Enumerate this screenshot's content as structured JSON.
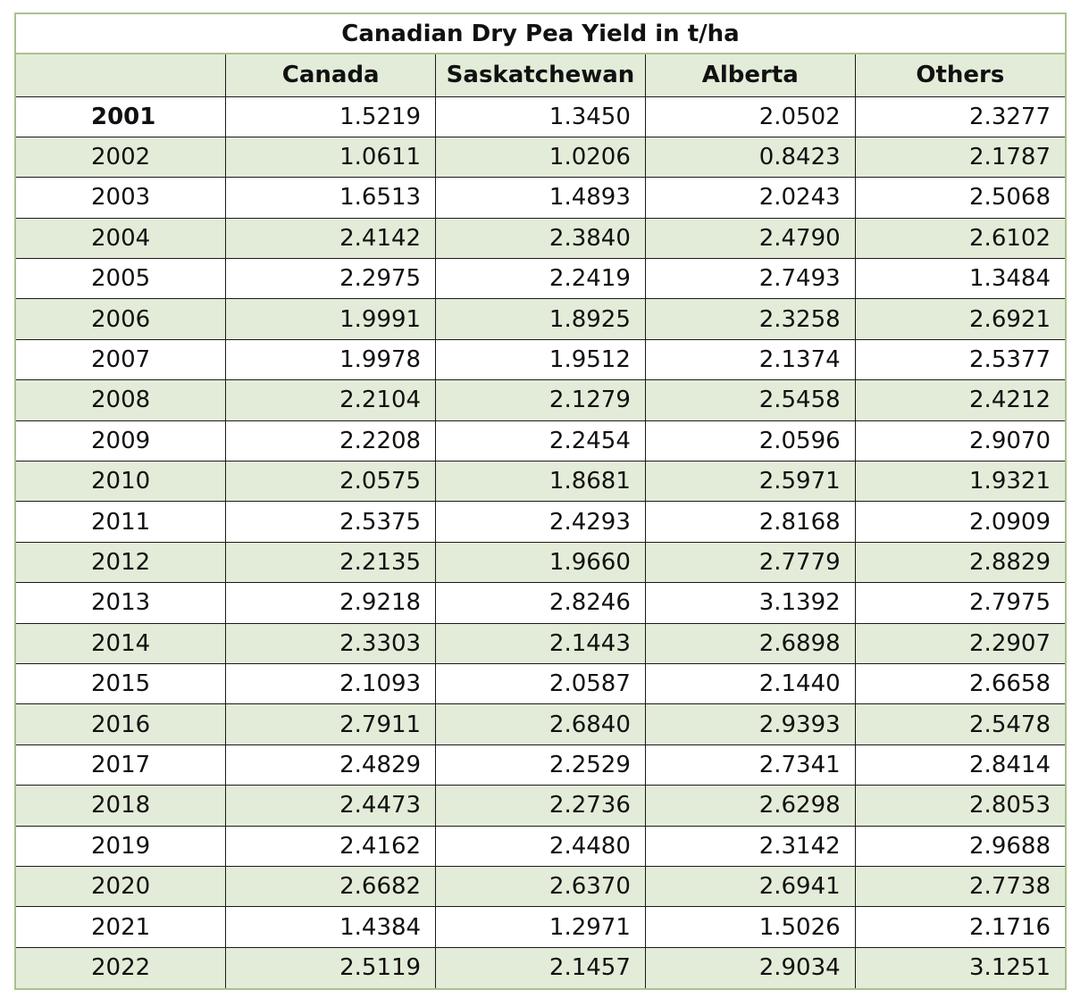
{
  "chart_data": {
    "type": "table",
    "title": "Canadian Dry Pea Yield in t/ha",
    "columns": [
      "",
      "Canada",
      "Saskatchewan",
      "Alberta",
      "Others"
    ],
    "rows": [
      [
        "2001",
        "1.5219",
        "1.3450",
        "2.0502",
        "2.3277"
      ],
      [
        "2002",
        "1.0611",
        "1.0206",
        "0.8423",
        "2.1787"
      ],
      [
        "2003",
        "1.6513",
        "1.4893",
        "2.0243",
        "2.5068"
      ],
      [
        "2004",
        "2.4142",
        "2.3840",
        "2.4790",
        "2.6102"
      ],
      [
        "2005",
        "2.2975",
        "2.2419",
        "2.7493",
        "1.3484"
      ],
      [
        "2006",
        "1.9991",
        "1.8925",
        "2.3258",
        "2.6921"
      ],
      [
        "2007",
        "1.9978",
        "1.9512",
        "2.1374",
        "2.5377"
      ],
      [
        "2008",
        "2.2104",
        "2.1279",
        "2.5458",
        "2.4212"
      ],
      [
        "2009",
        "2.2208",
        "2.2454",
        "2.0596",
        "2.9070"
      ],
      [
        "2010",
        "2.0575",
        "1.8681",
        "2.5971",
        "1.9321"
      ],
      [
        "2011",
        "2.5375",
        "2.4293",
        "2.8168",
        "2.0909"
      ],
      [
        "2012",
        "2.2135",
        "1.9660",
        "2.7779",
        "2.8829"
      ],
      [
        "2013",
        "2.9218",
        "2.8246",
        "3.1392",
        "2.7975"
      ],
      [
        "2014",
        "2.3303",
        "2.1443",
        "2.6898",
        "2.2907"
      ],
      [
        "2015",
        "2.1093",
        "2.0587",
        "2.1440",
        "2.6658"
      ],
      [
        "2016",
        "2.7911",
        "2.6840",
        "2.9393",
        "2.5478"
      ],
      [
        "2017",
        "2.4829",
        "2.2529",
        "2.7341",
        "2.8414"
      ],
      [
        "2018",
        "2.4473",
        "2.2736",
        "2.6298",
        "2.8053"
      ],
      [
        "2019",
        "2.4162",
        "2.4480",
        "2.3142",
        "2.9688"
      ],
      [
        "2020",
        "2.6682",
        "2.6370",
        "2.6941",
        "2.7738"
      ],
      [
        "2021",
        "1.4384",
        "1.2971",
        "1.5026",
        "2.1716"
      ],
      [
        "2022",
        "2.5119",
        "2.1457",
        "2.9034",
        "3.1251"
      ]
    ],
    "colors": {
      "header_fill": "#e3ecd8",
      "band_fill": "#e3ecd8",
      "frame": "#a9c18f",
      "grid": "#1a1a1a"
    }
  }
}
